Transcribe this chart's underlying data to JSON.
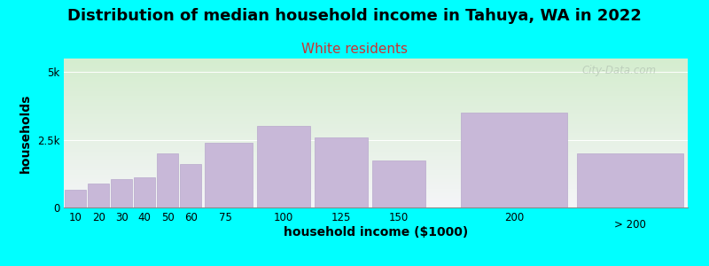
{
  "title": "Distribution of median household income in Tahuya, WA in 2022",
  "subtitle": "White residents",
  "xlabel": "household income ($1000)",
  "ylabel": "households",
  "background_color": "#00FFFF",
  "plot_bg_gradient_top": "#d5edcf",
  "plot_bg_gradient_bottom": "#f5f5f8",
  "bar_color": "#c8b8d8",
  "bar_edge_color": "#b8a8cc",
  "categories": [
    "10",
    "20",
    "30",
    "40",
    "50",
    "60",
    "75",
    "100",
    "125",
    "150",
    "200",
    "> 200"
  ],
  "bar_lefts": [
    5,
    15,
    25,
    35,
    45,
    55,
    65,
    87.5,
    112.5,
    137.5,
    175,
    225
  ],
  "bar_widths": [
    10,
    10,
    10,
    10,
    10,
    10,
    22.5,
    25,
    25,
    25,
    50,
    50
  ],
  "values": [
    650,
    900,
    1050,
    1100,
    2000,
    1600,
    2400,
    3000,
    2600,
    1750,
    3500,
    2000
  ],
  "xtick_positions": [
    10,
    20,
    30,
    40,
    50,
    60,
    75,
    100,
    125,
    150,
    200
  ],
  "xtick_labels": [
    "10",
    "20",
    "30",
    "40",
    "50",
    "60",
    "75",
    "100",
    "125",
    "150",
    "200"
  ],
  "xlim": [
    5,
    275
  ],
  "yticks": [
    0,
    2500,
    5000
  ],
  "ytick_labels": [
    "0",
    "2.5k",
    "5k"
  ],
  "ylim": [
    0,
    5500
  ],
  "watermark": "City-Data.com",
  "title_fontsize": 13,
  "subtitle_fontsize": 11,
  "subtitle_color": "#cc3333",
  "axis_label_fontsize": 10,
  "tick_fontsize": 8.5,
  "watermark_color": "#b0c0b0",
  "watermark_alpha": 0.65
}
